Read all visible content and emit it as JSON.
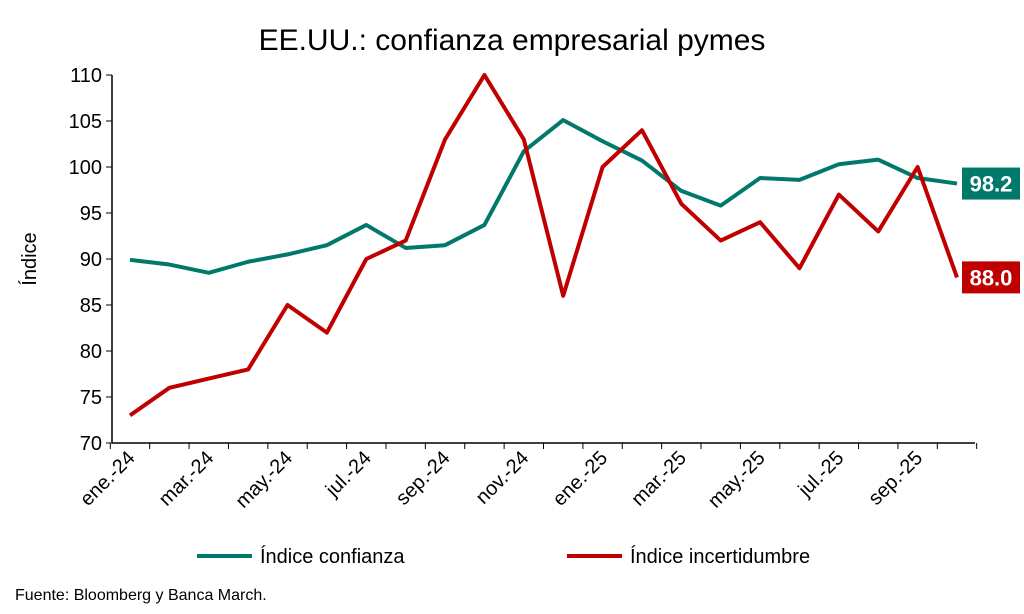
{
  "chart_data": {
    "type": "line",
    "title": "EE.UU.: confianza empresarial pymes",
    "ylabel": "Índice",
    "xlabel": "",
    "ylim": [
      70,
      110
    ],
    "yticks": [
      70,
      75,
      80,
      85,
      90,
      95,
      100,
      105,
      110
    ],
    "x": [
      "ene.-24",
      "feb.-24",
      "mar.-24",
      "abr.-24",
      "may.-24",
      "jun.-24",
      "jul.-24",
      "ago.-24",
      "sep.-24",
      "oct.-24",
      "nov.-24",
      "dic.-24",
      "ene.-25",
      "feb.-25",
      "mar.-25",
      "abr.-25",
      "may.-25",
      "jun.-25",
      "jul.-25",
      "ago.-25",
      "sep.-25",
      "oct.-25"
    ],
    "xtick_labels": [
      "ene.-24",
      "mar.-24",
      "may.-24",
      "jul.-24",
      "sep.-24",
      "nov.-24",
      "ene.-25",
      "mar.-25",
      "may.-25",
      "jul.-25",
      "sep.-25"
    ],
    "series": [
      {
        "name": "Índice confianza",
        "color": "#00796B",
        "values": [
          89.9,
          89.4,
          88.5,
          89.7,
          90.5,
          91.5,
          93.7,
          91.2,
          91.5,
          93.7,
          101.7,
          105.1,
          102.8,
          100.7,
          97.4,
          95.8,
          98.8,
          98.6,
          100.3,
          100.8,
          98.8,
          98.2
        ],
        "end_label": "98.2"
      },
      {
        "name": "Índice incertidumbre",
        "color": "#C00000",
        "values": [
          73,
          76,
          77,
          78,
          85,
          82,
          90,
          92,
          103,
          110,
          103,
          86,
          100,
          104,
          96,
          92,
          94,
          89,
          97,
          93,
          100,
          88
        ],
        "end_label": "88.0"
      }
    ],
    "legend": "bottom",
    "grid": false
  },
  "source": "Fuente: Bloomberg y Banca March."
}
